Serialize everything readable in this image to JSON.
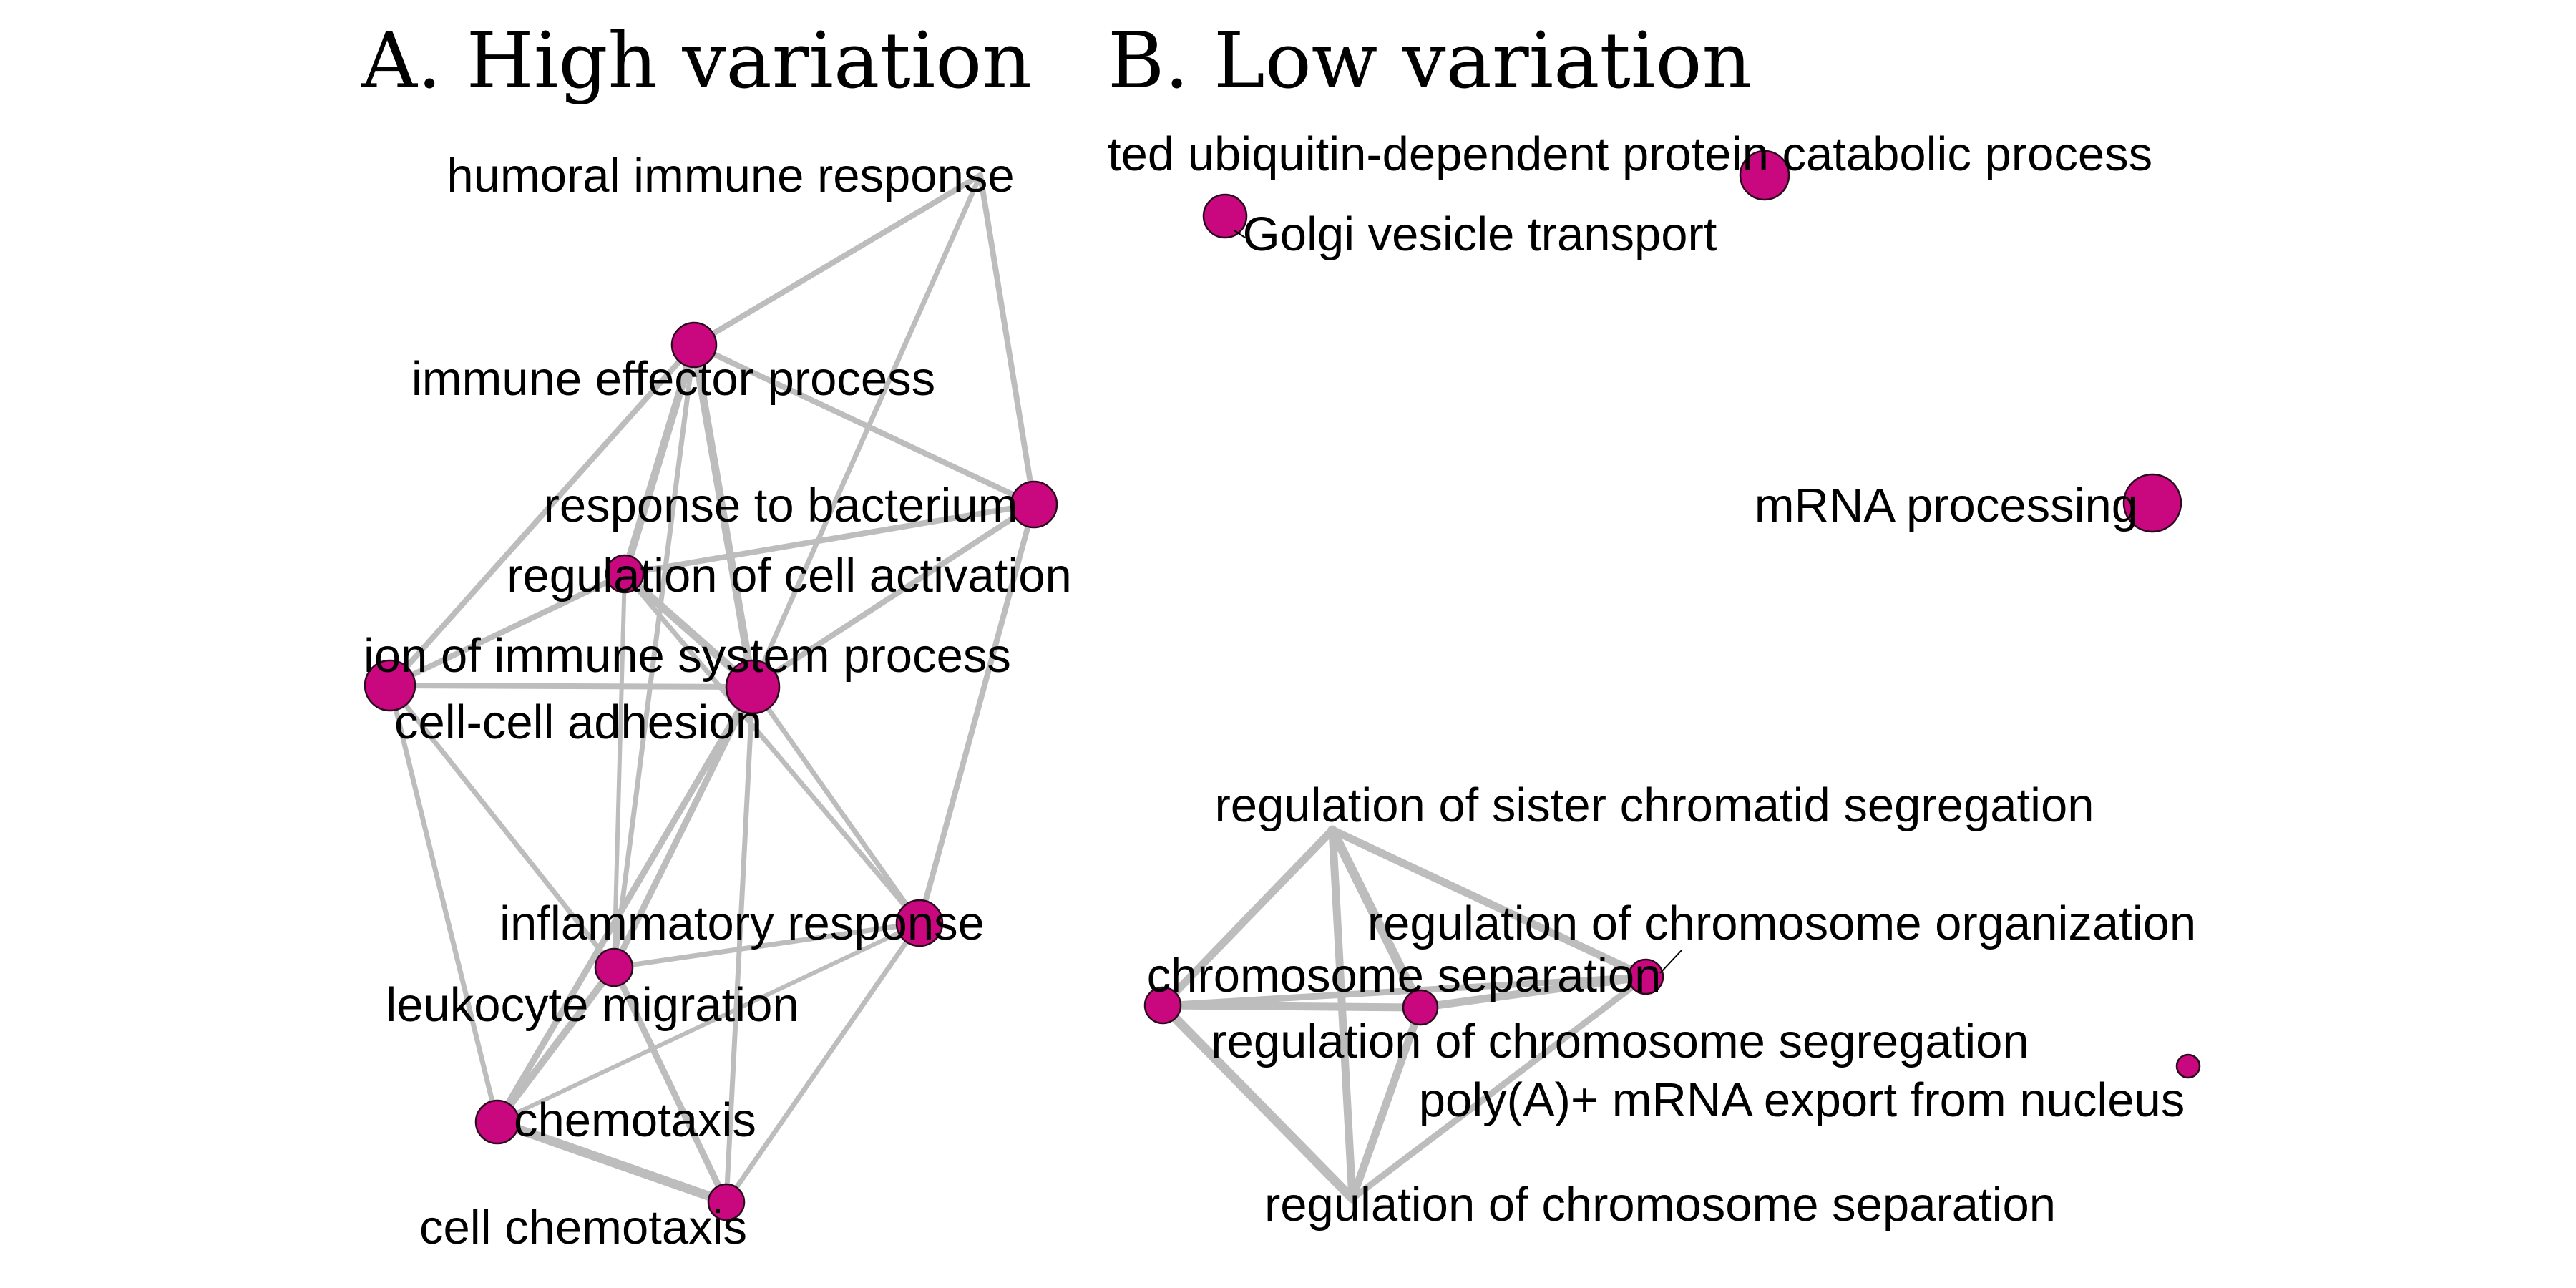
{
  "colors": {
    "node_fill": "#c9087f",
    "node_stroke": "#2a0a1c",
    "edge": "#bdbdbd",
    "label": "#000000"
  },
  "panels": [
    {
      "id": "A",
      "title": "A. High variation",
      "nodes": [
        {
          "id": "humoral",
          "label": "humoral immune response"
        },
        {
          "id": "effector",
          "label": "immune effector process"
        },
        {
          "id": "bacterium",
          "label": "response to bacterium"
        },
        {
          "id": "cellact",
          "label": "regulation of cell activation"
        },
        {
          "id": "immsys",
          "label": "ion of immune system process"
        },
        {
          "id": "adhesion",
          "label": "cell-cell adhesion"
        },
        {
          "id": "inflam",
          "label": "inflammatory response"
        },
        {
          "id": "leuk",
          "label": "leukocyte migration"
        },
        {
          "id": "chemo",
          "label": "chemotaxis"
        },
        {
          "id": "cellchemo",
          "label": "cell chemotaxis"
        }
      ]
    },
    {
      "id": "B",
      "title": "B. Low variation",
      "nodes": [
        {
          "id": "ubiq",
          "label": "ted ubiquitin-dependent protein catabolic process"
        },
        {
          "id": "golgi",
          "label": "Golgi vesicle transport"
        },
        {
          "id": "mrna",
          "label": "mRNA processing"
        },
        {
          "id": "sister",
          "label": "regulation of sister chromatid segregation"
        },
        {
          "id": "chromorg",
          "label": "regulation of chromosome organization"
        },
        {
          "id": "chromsep",
          "label": "chromosome separation"
        },
        {
          "id": "chromseg",
          "label": "regulation of chromosome segregation"
        },
        {
          "id": "polya",
          "label": "poly(A)+ mRNA export from nucleus"
        },
        {
          "id": "regchromsep",
          "label": "regulation of chromosome separation"
        }
      ]
    }
  ]
}
